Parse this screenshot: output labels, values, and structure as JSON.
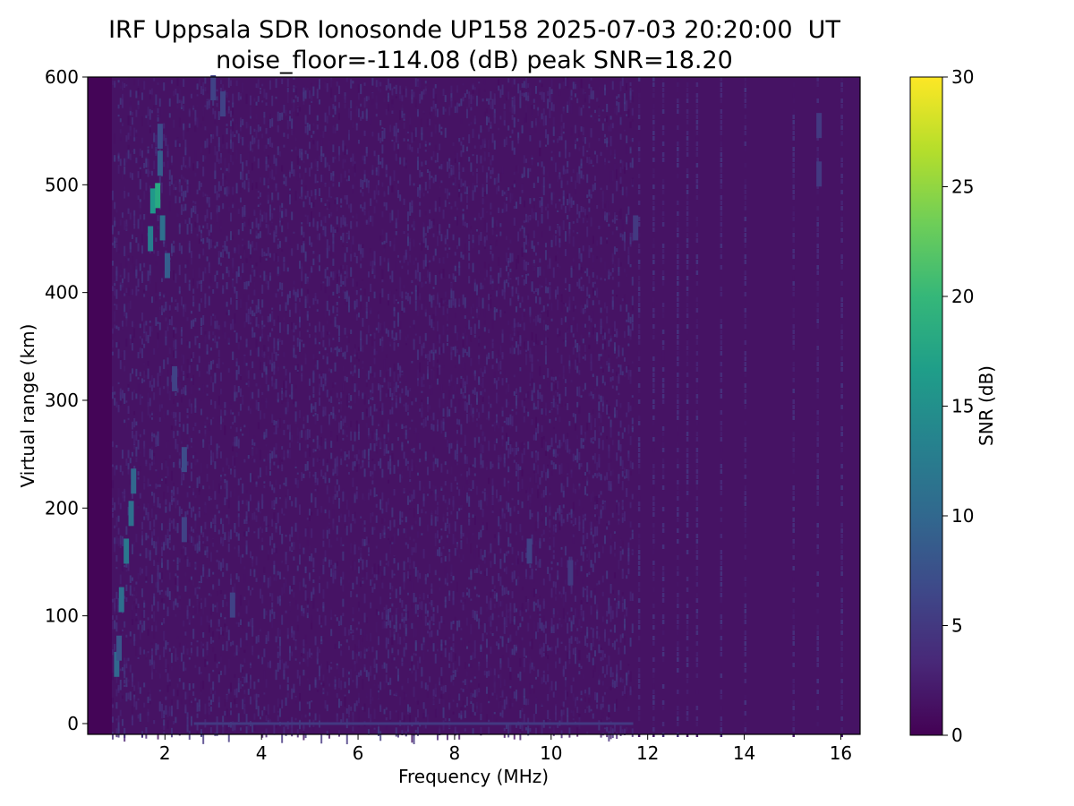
{
  "chart_data": {
    "type": "heatmap",
    "title": "IRF Uppsala SDR Ionosonde UP158 2025-07-03 20:20:00  UT",
    "subtitle": "noise_floor=-114.08 (dB) peak SNR=18.20",
    "xlabel": "Frequency (MHz)",
    "ylabel": "Virtual range (km)",
    "xlim": [
      0.4,
      16.4
    ],
    "ylim": [
      -10,
      600
    ],
    "xticks": [
      2,
      4,
      6,
      8,
      10,
      12,
      14,
      16
    ],
    "yticks": [
      0,
      100,
      200,
      300,
      400,
      500,
      600
    ],
    "data_extent": {
      "freq_mhz": [
        0.9,
        16.4
      ],
      "range_km": [
        -10,
        600
      ]
    },
    "colorbar": {
      "label": "SNR (dB)",
      "range": [
        0,
        30
      ],
      "ticks": [
        0,
        5,
        10,
        15,
        20,
        25,
        30
      ],
      "colormap": [
        "#440154",
        "#482878",
        "#3e4989",
        "#31688e",
        "#26828e",
        "#1f9e89",
        "#35b779",
        "#6ece58",
        "#b5de2b",
        "#fde725"
      ]
    },
    "background_snr_db": 1.5,
    "traces": [
      {
        "name": "",
        "points": [
          {
            "f": 1.0,
            "r": 55,
            "snr": 10
          },
          {
            "f": 1.05,
            "r": 70,
            "snr": 8
          },
          {
            "f": 1.1,
            "r": 115,
            "snr": 11
          },
          {
            "f": 1.2,
            "r": 160,
            "snr": 12
          },
          {
            "f": 1.3,
            "r": 195,
            "snr": 11
          },
          {
            "f": 1.35,
            "r": 225,
            "snr": 10
          },
          {
            "f": 1.7,
            "r": 450,
            "snr": 13
          },
          {
            "f": 1.75,
            "r": 485,
            "snr": 16
          },
          {
            "f": 1.85,
            "r": 490,
            "snr": 18.2
          },
          {
            "f": 1.9,
            "r": 520,
            "snr": 9
          },
          {
            "f": 1.95,
            "r": 460,
            "snr": 11
          },
          {
            "f": 2.05,
            "r": 425,
            "snr": 9
          },
          {
            "f": 2.4,
            "r": 245,
            "snr": 7
          }
        ]
      },
      {
        "name": "",
        "points": [
          {
            "f": 1.9,
            "r": 545,
            "snr": 7
          },
          {
            "f": 2.2,
            "r": 320,
            "snr": 6
          },
          {
            "f": 2.4,
            "r": 180,
            "snr": 6
          },
          {
            "f": 3.0,
            "r": 590,
            "snr": 6
          },
          {
            "f": 3.2,
            "r": 575,
            "snr": 6
          },
          {
            "f": 3.4,
            "r": 110,
            "snr": 6
          },
          {
            "f": 9.55,
            "r": 160,
            "snr": 6
          },
          {
            "f": 10.4,
            "r": 140,
            "snr": 5
          },
          {
            "f": 11.75,
            "r": 460,
            "snr": 5
          },
          {
            "f": 15.55,
            "r": 510,
            "snr": 5
          },
          {
            "f": 15.55,
            "r": 555,
            "snr": 5
          }
        ]
      }
    ],
    "ground_echo": {
      "range_km": 0,
      "freq_mhz": [
        2.6,
        11.7
      ],
      "snr": 5
    },
    "high_freq_lines_mhz": [
      11.8,
      12.1,
      12.3,
      12.6,
      12.8,
      13.0,
      13.5,
      14.0,
      15.0,
      15.5,
      16.0
    ]
  }
}
